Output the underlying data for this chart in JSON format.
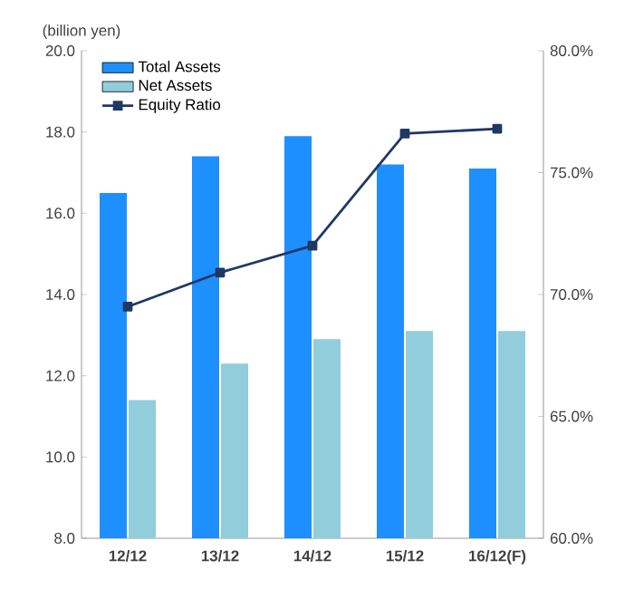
{
  "chart_data": {
    "type": "bar",
    "ylabel": "(billion yen)",
    "categories": [
      "12/12",
      "13/12",
      "14/12",
      "15/12",
      "16/12(F)"
    ],
    "series": [
      {
        "name": "Total Assets",
        "color": "#1e8fff",
        "values": [
          16.5,
          17.4,
          17.9,
          17.2,
          17.1
        ]
      },
      {
        "name": "Net Assets",
        "color": "#92cddc",
        "values": [
          11.4,
          12.3,
          12.9,
          13.1,
          13.1
        ]
      },
      {
        "name": "Equity Ratio",
        "type": "line",
        "axis": "y2",
        "color": "#1f3864",
        "marker": "square",
        "values": [
          69.5,
          70.9,
          72.0,
          76.6,
          76.8
        ]
      }
    ],
    "ylim": [
      8,
      20
    ],
    "yticks": [
      {
        "value": 8,
        "label": "8.0"
      },
      {
        "value": 10,
        "label": "10.0"
      },
      {
        "value": 12,
        "label": "12.0"
      },
      {
        "value": 14,
        "label": "14.0"
      },
      {
        "value": 16,
        "label": "16.0"
      },
      {
        "value": 18,
        "label": "18.0"
      },
      {
        "value": 20,
        "label": "20.0"
      }
    ],
    "y2lim": [
      60,
      80
    ],
    "y2ticks": [
      {
        "value": 60,
        "label": "60.0%"
      },
      {
        "value": 65,
        "label": "65.0%"
      },
      {
        "value": 70,
        "label": "70.0%"
      },
      {
        "value": 75,
        "label": "75.0%"
      },
      {
        "value": 80,
        "label": "80.0%"
      }
    ],
    "legend": "top left",
    "grid": false
  }
}
